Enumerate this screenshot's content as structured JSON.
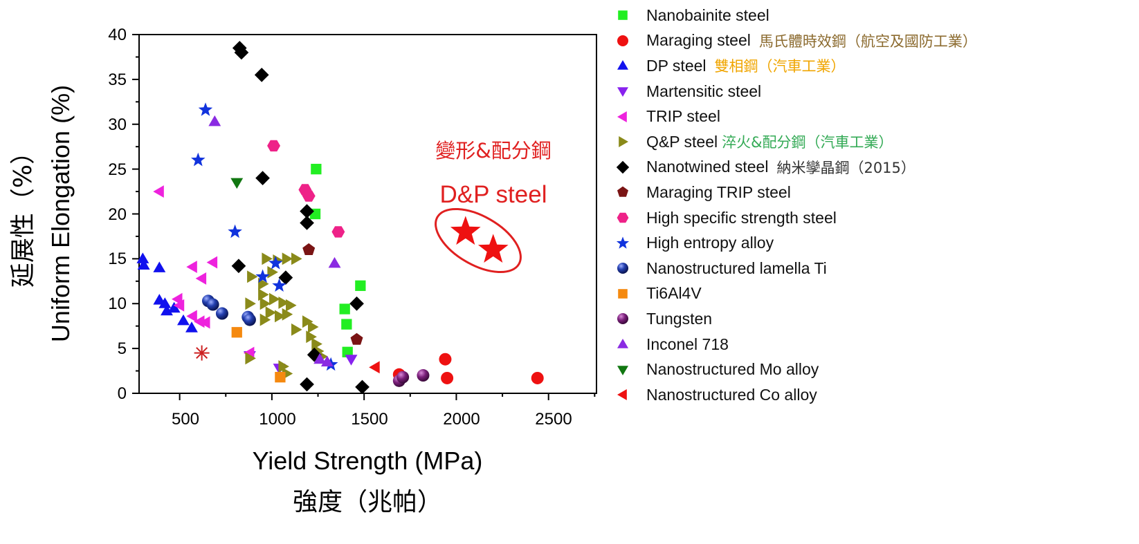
{
  "chart_data": {
    "type": "scatter",
    "xlabel": "Yield Strength (MPa)",
    "xlabel_zh": "強度（兆帕）",
    "ylabel": "Uniform Elongation (%)",
    "ylabel_zh": "延展性（%）",
    "xlim": [
      280,
      2760
    ],
    "ylim": [
      0,
      40
    ],
    "x_ticks": [
      "500",
      "1000",
      "1500",
      "2000",
      "2500"
    ],
    "y_ticks": [
      "0",
      "5",
      "10",
      "15",
      "20",
      "25",
      "30",
      "35",
      "40"
    ],
    "grid": false,
    "legend_position": "right",
    "annotation": {
      "zh": "變形&配分鋼",
      "en": "D&P steel",
      "color": "#e02020",
      "circled_points": [
        [
          2050,
          18
        ],
        [
          2200,
          16
        ]
      ]
    },
    "series": [
      {
        "name": "Nanobainite steel",
        "marker": "square",
        "color": "#22ee22",
        "points": [
          [
            1240,
            25
          ],
          [
            1235,
            20
          ],
          [
            1480,
            12
          ],
          [
            1395,
            9.4
          ],
          [
            1405,
            7.7
          ],
          [
            1410,
            4.6
          ]
        ]
      },
      {
        "name": "Maraging steel",
        "note": "馬氏體時效鋼（航空及國防工業）",
        "note_color": "#8b6a2e",
        "marker": "circle",
        "color": "#ee1111",
        "points": [
          [
            1940,
            3.8
          ],
          [
            1950,
            1.7
          ],
          [
            2440,
            1.7
          ],
          [
            1690,
            2.1
          ]
        ]
      },
      {
        "name": "DP steel",
        "note": "雙相鋼（汽車工業）",
        "note_color": "#f0a500",
        "marker": "triangle-up",
        "color": "#1111ee",
        "points": [
          [
            300,
            15
          ],
          [
            305,
            14.3
          ],
          [
            390,
            14
          ],
          [
            390,
            10.4
          ],
          [
            420,
            10
          ],
          [
            430,
            9.2
          ],
          [
            470,
            9.5
          ],
          [
            520,
            8.1
          ],
          [
            565,
            7.3
          ]
        ]
      },
      {
        "name": "Martensitic steel",
        "marker": "triangle-down",
        "color": "#8822ee",
        "points": [
          [
            1430,
            3.8
          ],
          [
            1040,
            2.8
          ],
          [
            880,
            4.2
          ]
        ]
      },
      {
        "name": "TRIP steel",
        "marker": "triangle-left",
        "color": "#ee22dd",
        "points": [
          [
            390,
            22.5
          ],
          [
            620,
            12.8
          ],
          [
            570,
            14.1
          ],
          [
            680,
            14.6
          ],
          [
            490,
            10.5
          ],
          [
            500,
            9.8
          ],
          [
            570,
            8.6
          ],
          [
            610,
            8.0
          ],
          [
            640,
            7.9
          ],
          [
            880,
            4.5
          ]
        ]
      },
      {
        "name": "Q&P steel",
        "note": "淬火&配分鋼（汽車工業）",
        "note_color": "#33aa55",
        "marker": "triangle-right",
        "color": "#8a8a1a",
        "points": [
          [
            970,
            15
          ],
          [
            1030,
            14.8
          ],
          [
            1080,
            15
          ],
          [
            1130,
            15
          ],
          [
            890,
            13
          ],
          [
            950,
            12.2
          ],
          [
            1000,
            13.5
          ],
          [
            950,
            11
          ],
          [
            960,
            10
          ],
          [
            1010,
            10.5
          ],
          [
            1060,
            10.1
          ],
          [
            1100,
            9.8
          ],
          [
            880,
            10
          ],
          [
            990,
            9
          ],
          [
            960,
            8.2
          ],
          [
            1040,
            8.6
          ],
          [
            1080,
            8.8
          ],
          [
            1130,
            7.1
          ],
          [
            1190,
            8
          ],
          [
            1220,
            7.4
          ],
          [
            1210,
            6.3
          ],
          [
            1240,
            5.5
          ],
          [
            1250,
            4.7
          ],
          [
            1270,
            4.1
          ],
          [
            1060,
            3
          ],
          [
            1080,
            2.2
          ],
          [
            880,
            3.9
          ]
        ]
      },
      {
        "name": "Nanotwined steel",
        "note": "納米孿晶鋼（2015）",
        "note_color": "#333333",
        "marker": "diamond",
        "color": "#000000",
        "points": [
          [
            825,
            38.5
          ],
          [
            835,
            38
          ],
          [
            945,
            35.5
          ],
          [
            950,
            24
          ],
          [
            1190,
            20.3
          ],
          [
            1190,
            19
          ],
          [
            820,
            14.2
          ],
          [
            1075,
            12.9
          ],
          [
            1460,
            10
          ],
          [
            1230,
            4.3
          ],
          [
            1190,
            1
          ],
          [
            1490,
            0.7
          ]
        ]
      },
      {
        "name": "Maraging TRIP steel",
        "marker": "pentagon",
        "color": "#7a1414",
        "points": [
          [
            1200,
            16
          ],
          [
            1460,
            6
          ]
        ]
      },
      {
        "name": "High specific strength steel",
        "marker": "hexagon",
        "color": "#ee2288",
        "points": [
          [
            1010,
            27.6
          ],
          [
            1180,
            22.7
          ],
          [
            1200,
            22
          ],
          [
            1360,
            18
          ]
        ]
      },
      {
        "name": "High entropy alloy",
        "marker": "star",
        "color": "#1133dd",
        "points": [
          [
            640,
            31.6
          ],
          [
            600,
            26
          ],
          [
            800,
            18
          ],
          [
            1020,
            14.5
          ],
          [
            950,
            13
          ],
          [
            1040,
            12
          ],
          [
            1320,
            3.2
          ]
        ]
      },
      {
        "name": "Nanostructured lamella Ti",
        "marker": "sphere",
        "color": "#1a2f99",
        "points": [
          [
            655,
            10.3
          ],
          [
            680,
            9.9
          ],
          [
            730,
            8.9
          ],
          [
            870,
            8.5
          ],
          [
            880,
            8.2
          ]
        ]
      },
      {
        "name": "Ti6Al4V",
        "marker": "square",
        "color": "#f5890f",
        "points": [
          [
            810,
            6.8
          ],
          [
            1045,
            1.8
          ]
        ]
      },
      {
        "name": "Tungsten",
        "marker": "sphere",
        "color": "#7a1f7a",
        "points": [
          [
            1690,
            1.4
          ],
          [
            1710,
            1.8
          ],
          [
            1820,
            2
          ]
        ]
      },
      {
        "name": "Inconel 718",
        "marker": "triangle-up",
        "color": "#8a2be2",
        "points": [
          [
            690,
            30.3
          ],
          [
            1340,
            14.5
          ],
          [
            1260,
            3.8
          ],
          [
            1300,
            3.5
          ]
        ]
      },
      {
        "name": "Nanostructured Mo alloy",
        "marker": "triangle-down",
        "color": "#117711",
        "points": [
          [
            810,
            23.5
          ]
        ]
      },
      {
        "name": "Nanostructured Co alloy",
        "marker": "triangle-left",
        "color": "#ee1111",
        "points": [
          [
            1560,
            2.9
          ]
        ]
      }
    ],
    "extra_points": [
      {
        "marker": "asterisk",
        "color": "#cc2222",
        "points": [
          [
            620,
            4.5
          ]
        ]
      },
      {
        "marker": "big-star",
        "color": "#ee1111",
        "points": [
          [
            2050,
            18
          ],
          [
            2200,
            16
          ]
        ]
      }
    ]
  }
}
